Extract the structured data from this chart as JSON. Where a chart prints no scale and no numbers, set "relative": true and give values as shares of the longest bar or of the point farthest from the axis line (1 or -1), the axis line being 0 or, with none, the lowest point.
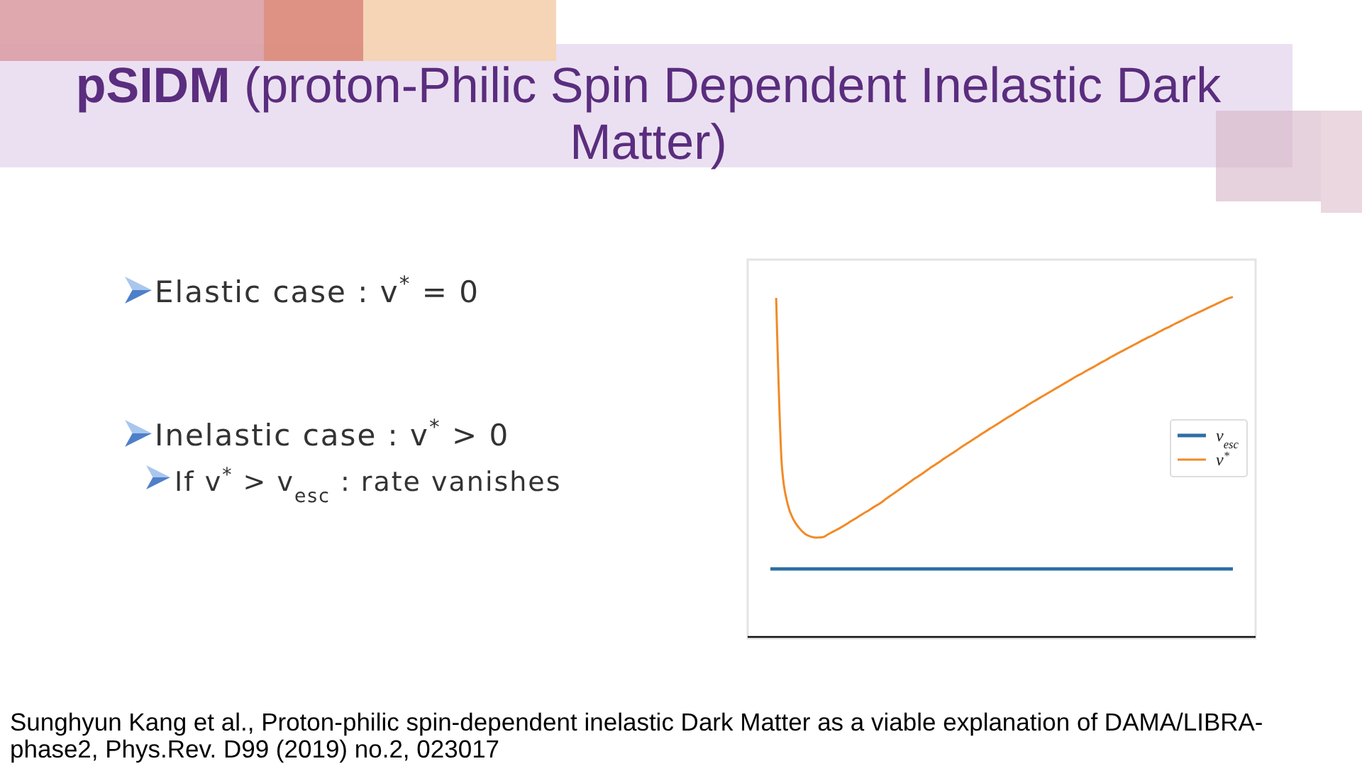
{
  "chart_data": {
    "type": "line",
    "title": "pSIDM (proton-Philic Spin Dependent Inelastic Dark Matter)",
    "annotations": [
      "Elastic case : v$^{*}$ = 0",
      "Inelastic case : v$^{*}$ > 0",
      "If v$^{*}$ > v$_{esc}$ : rate vanishes",
      "Sunghyun Kang et al., Proton-philic spin-dependent inelastic Dark Matter as a viable explanation of DAMA/LIBRA-phase2, Phys.Rev. D99 (2019) no.2, 023017"
    ],
    "relative": true,
    "legend": "right",
    "categories": [
      null,
      null,
      null,
      null,
      null,
      null,
      null,
      null,
      null,
      null,
      null,
      null,
      null,
      null,
      null,
      null,
      null,
      null,
      null,
      null,
      null,
      null,
      null,
      null,
      null,
      null,
      null,
      null,
      null,
      null,
      null,
      null,
      null,
      null,
      null,
      null,
      null,
      null,
      null,
      null,
      null,
      null,
      null,
      null,
      null,
      null,
      null,
      null,
      null,
      null,
      null,
      null,
      null,
      null,
      null,
      null,
      null,
      null,
      null,
      null,
      null,
      null,
      null,
      null,
      null,
      null,
      null,
      null,
      null,
      null,
      null,
      null,
      null,
      null,
      null,
      null,
      null,
      null,
      null,
      null,
      null
    ],
    "series": [
      {
        "name": "v$_{esc}$",
        "color": "#2c6ea5",
        "values": [
          0.2,
          0.2,
          0.2,
          0.2,
          0.2,
          0.2,
          0.2,
          0.2,
          0.2,
          0.2,
          0.2,
          0.2,
          0.2,
          0.2,
          0.2,
          0.2,
          0.2,
          0.2,
          0.2,
          0.2,
          0.2,
          0.2,
          0.2,
          0.2,
          0.2,
          0.2,
          0.2,
          0.2,
          0.2,
          0.2,
          0.2,
          0.2,
          0.2,
          0.2,
          0.2,
          0.2,
          0.2,
          0.2,
          0.2,
          0.2,
          0.2,
          0.2,
          0.2,
          0.2,
          0.2,
          0.2,
          0.2,
          0.2,
          0.2,
          0.2,
          0.2,
          0.2,
          0.2,
          0.2,
          0.2,
          0.2,
          0.2,
          0.2,
          0.2,
          0.2,
          0.2,
          0.2,
          0.2,
          0.2,
          0.2,
          0.2,
          0.2,
          0.2,
          0.2,
          0.2,
          0.2,
          0.2,
          0.2,
          0.2,
          0.2,
          0.2,
          0.2,
          0.2,
          0.2,
          0.2,
          0.2
        ]
      },
      {
        "name": "v$^{*}$",
        "color": "#f28a26",
        "values": [
          null,
          0.997,
          0.5,
          0.39,
          0.345,
          0.32,
          0.303,
          0.295,
          0.292,
          0.293,
          0.302,
          0.311,
          0.32,
          0.33,
          0.341,
          0.351,
          0.362,
          0.372,
          0.383,
          0.393,
          0.406,
          0.418,
          0.43,
          0.442,
          0.454,
          0.466,
          0.477,
          0.489,
          0.501,
          0.512,
          0.524,
          0.535,
          0.546,
          0.558,
          0.569,
          0.58,
          0.591,
          0.602,
          0.613,
          0.623,
          0.634,
          0.645,
          0.655,
          0.666,
          0.676,
          0.687,
          0.697,
          0.707,
          0.717,
          0.727,
          0.737,
          0.747,
          0.757,
          0.767,
          0.776,
          0.786,
          0.795,
          0.805,
          0.814,
          0.824,
          0.833,
          0.842,
          0.851,
          0.86,
          0.869,
          0.878,
          0.886,
          0.895,
          0.904,
          0.912,
          0.921,
          0.929,
          0.938,
          0.946,
          0.954,
          0.962,
          0.97,
          0.978,
          0.986,
          0.994,
          1
        ]
      }
    ]
  }
}
